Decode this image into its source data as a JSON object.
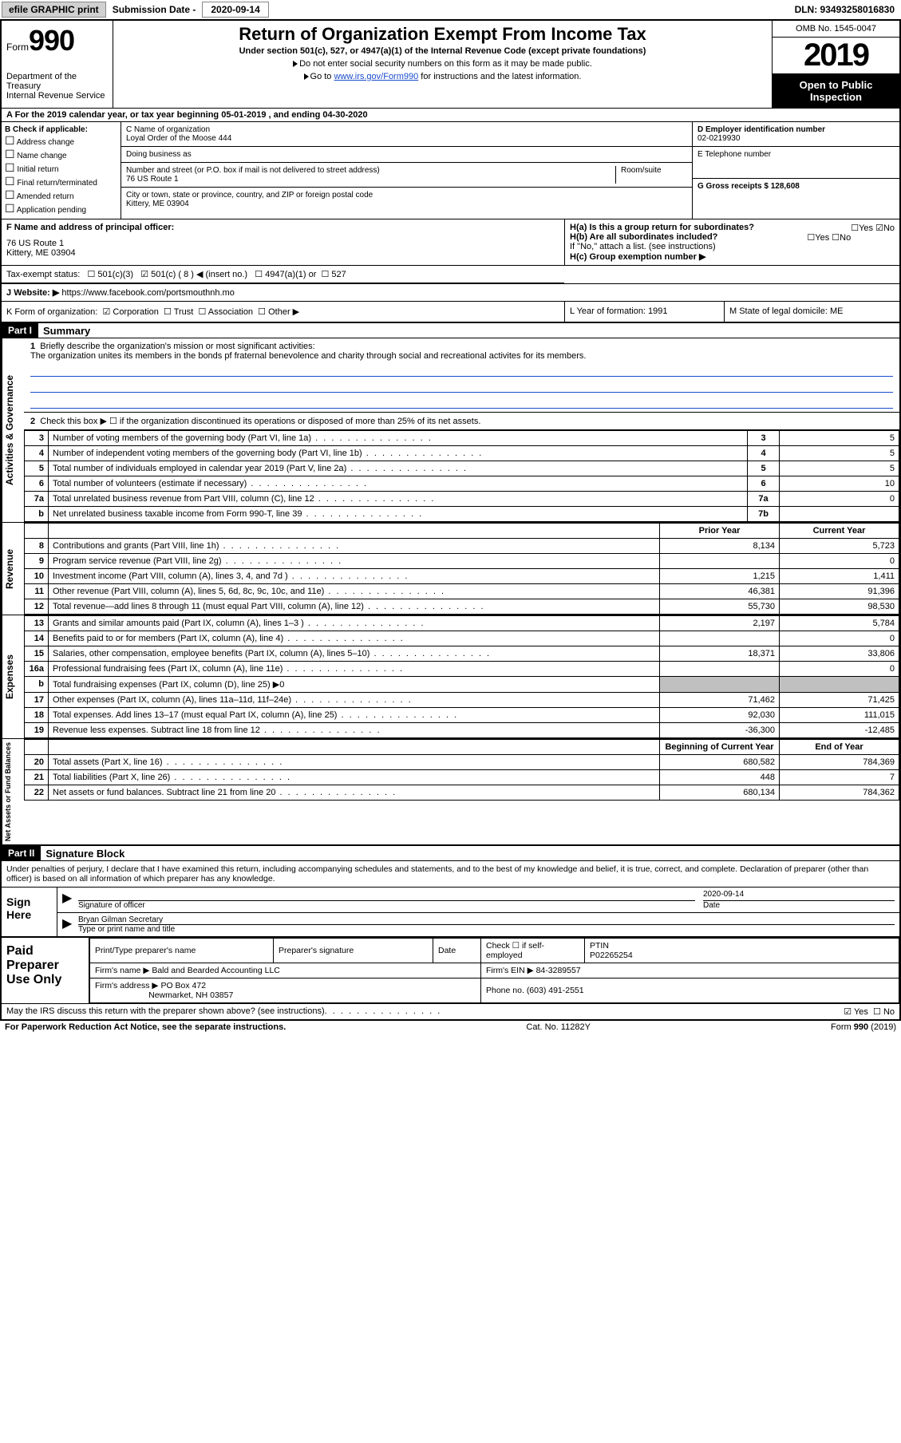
{
  "topbar": {
    "efile_label": "efile GRAPHIC print",
    "sub_label": "Submission Date - ",
    "sub_date": "2020-09-14",
    "dln": "DLN: 93493258016830"
  },
  "header": {
    "form_prefix": "Form",
    "form_no": "990",
    "dept": "Department of the Treasury",
    "irs": "Internal Revenue Service",
    "title": "Return of Organization Exempt From Income Tax",
    "sub1": "Under section 501(c), 527, or 4947(a)(1) of the Internal Revenue Code (except private foundations)",
    "sub2": "Do not enter social security numbers on this form as it may be made public.",
    "sub3_pre": "Go to ",
    "sub3_link": "www.irs.gov/Form990",
    "sub3_post": " for instructions and the latest information.",
    "omb": "OMB No. 1545-0047",
    "year": "2019",
    "openpub": "Open to Public Inspection"
  },
  "period": {
    "text": "For the 2019 calendar year, or tax year beginning 05-01-2019    , and ending 04-30-2020"
  },
  "boxB": {
    "label": "B Check if applicable:",
    "opts": [
      "Address change",
      "Name change",
      "Initial return",
      "Final return/terminated",
      "Amended return",
      "Application pending"
    ]
  },
  "boxC": {
    "name_lbl": "C Name of organization",
    "name": "Loyal Order of the Moose 444",
    "dba_lbl": "Doing business as",
    "addr_lbl": "Number and street (or P.O. box if mail is not delivered to street address)",
    "addr": "76 US Route 1",
    "room_lbl": "Room/suite",
    "city_lbl": "City or town, state or province, country, and ZIP or foreign postal code",
    "city": "Kittery, ME  03904"
  },
  "boxD": {
    "lbl": "D Employer identification number",
    "val": "02-0219930"
  },
  "boxE": {
    "lbl": "E Telephone number"
  },
  "boxG": {
    "lbl": "G Gross receipts $ 128,608"
  },
  "boxF": {
    "lbl": "F  Name and address of principal officer:",
    "l1": "76 US Route 1",
    "l2": "Kittery, ME  03904"
  },
  "boxH": {
    "ha": "H(a)  Is this a group return for subordinates?",
    "hb": "H(b)  Are all subordinates included?",
    "hb_note": "If \"No,\" attach a list. (see instructions)",
    "hc": "H(c)  Group exemption number ▶",
    "yes": "Yes",
    "no": "No"
  },
  "taxexempt": {
    "lbl": "Tax-exempt status:",
    "o1": "501(c)(3)",
    "o2": "501(c) ( 8 ) ◀ (insert no.)",
    "o3": "4947(a)(1) or",
    "o4": "527"
  },
  "boxJ": {
    "lbl": "J",
    "txt": "Website: ▶  ",
    "val": "https://www.facebook.com/portsmouthnh.mo"
  },
  "boxK": {
    "txt": "K Form of organization:",
    "o1": "Corporation",
    "o2": "Trust",
    "o3": "Association",
    "o4": "Other ▶"
  },
  "boxL": {
    "txt": "L Year of formation: 1991"
  },
  "boxM": {
    "txt": "M State of legal domicile: ME"
  },
  "part1": {
    "hdr": "Part I",
    "title": "Summary",
    "q1": "Briefly describe the organization's mission or most significant activities:",
    "mission": "The organization unites its members in the bonds pf fraternal benevolence and charity through social and recreational activites for its members.",
    "q2": "Check this box ▶ ☐  if the organization discontinued its operations or disposed of more than 25% of its net assets.",
    "side_ag": "Activities & Governance",
    "side_rev": "Revenue",
    "side_exp": "Expenses",
    "side_na": "Net Assets or Fund Balances",
    "rows_gov": [
      {
        "n": "3",
        "d": "Number of voting members of the governing body (Part VI, line 1a)",
        "c": "3",
        "v": "5"
      },
      {
        "n": "4",
        "d": "Number of independent voting members of the governing body (Part VI, line 1b)",
        "c": "4",
        "v": "5"
      },
      {
        "n": "5",
        "d": "Total number of individuals employed in calendar year 2019 (Part V, line 2a)",
        "c": "5",
        "v": "5"
      },
      {
        "n": "6",
        "d": "Total number of volunteers (estimate if necessary)",
        "c": "6",
        "v": "10"
      },
      {
        "n": "7a",
        "d": "Total unrelated business revenue from Part VIII, column (C), line 12",
        "c": "7a",
        "v": "0"
      },
      {
        "n": "b",
        "d": "Net unrelated business taxable income from Form 990-T, line 39",
        "c": "7b",
        "v": ""
      }
    ],
    "py": "Prior Year",
    "cy": "Current Year",
    "rows_rev": [
      {
        "n": "8",
        "d": "Contributions and grants (Part VIII, line 1h)",
        "py": "8,134",
        "cy": "5,723"
      },
      {
        "n": "9",
        "d": "Program service revenue (Part VIII, line 2g)",
        "py": "",
        "cy": "0"
      },
      {
        "n": "10",
        "d": "Investment income (Part VIII, column (A), lines 3, 4, and 7d )",
        "py": "1,215",
        "cy": "1,411"
      },
      {
        "n": "11",
        "d": "Other revenue (Part VIII, column (A), lines 5, 6d, 8c, 9c, 10c, and 11e)",
        "py": "46,381",
        "cy": "91,396"
      },
      {
        "n": "12",
        "d": "Total revenue—add lines 8 through 11 (must equal Part VIII, column (A), line 12)",
        "py": "55,730",
        "cy": "98,530"
      }
    ],
    "rows_exp": [
      {
        "n": "13",
        "d": "Grants and similar amounts paid (Part IX, column (A), lines 1–3 )",
        "py": "2,197",
        "cy": "5,784"
      },
      {
        "n": "14",
        "d": "Benefits paid to or for members (Part IX, column (A), line 4)",
        "py": "",
        "cy": "0"
      },
      {
        "n": "15",
        "d": "Salaries, other compensation, employee benefits (Part IX, column (A), lines 5–10)",
        "py": "18,371",
        "cy": "33,806"
      },
      {
        "n": "16a",
        "d": "Professional fundraising fees (Part IX, column (A), line 11e)",
        "py": "",
        "cy": "0"
      },
      {
        "n": "b",
        "d": "Total fundraising expenses (Part IX, column (D), line 25) ▶0",
        "py": "shade",
        "cy": "shade"
      },
      {
        "n": "17",
        "d": "Other expenses (Part IX, column (A), lines 11a–11d, 11f–24e)",
        "py": "71,462",
        "cy": "71,425"
      },
      {
        "n": "18",
        "d": "Total expenses. Add lines 13–17 (must equal Part IX, column (A), line 25)",
        "py": "92,030",
        "cy": "111,015"
      },
      {
        "n": "19",
        "d": "Revenue less expenses. Subtract line 18 from line 12",
        "py": "-36,300",
        "cy": "-12,485"
      }
    ],
    "bcy": "Beginning of Current Year",
    "eoy": "End of Year",
    "rows_na": [
      {
        "n": "20",
        "d": "Total assets (Part X, line 16)",
        "py": "680,582",
        "cy": "784,369"
      },
      {
        "n": "21",
        "d": "Total liabilities (Part X, line 26)",
        "py": "448",
        "cy": "7"
      },
      {
        "n": "22",
        "d": "Net assets or fund balances. Subtract line 21 from line 20",
        "py": "680,134",
        "cy": "784,362"
      }
    ]
  },
  "part2": {
    "hdr": "Part II",
    "title": "Signature Block",
    "decl": "Under penalties of perjury, I declare that I have examined this return, including accompanying schedules and statements, and to the best of my knowledge and belief, it is true, correct, and complete. Declaration of preparer (other than officer) is based on all information of which preparer has any knowledge.",
    "sign_here": "Sign Here",
    "sig_officer": "Signature of officer",
    "date_lbl": "Date",
    "sig_date": "2020-09-14",
    "name": "Bryan Gilman  Secretary",
    "name_lbl": "Type or print name and title",
    "paid": "Paid Preparer Use Only",
    "pname_lbl": "Print/Type preparer's name",
    "psig_lbl": "Preparer's signature",
    "pdate_lbl": "Date",
    "pcheck": "Check ☐ if self-employed",
    "ptin_lbl": "PTIN",
    "ptin": "P02265254",
    "firm_lbl": "Firm's name    ▶",
    "firm": "Bald and Bearded Accounting LLC",
    "fein_lbl": "Firm's EIN ▶",
    "fein": "84-3289557",
    "faddr_lbl": "Firm's address ▶",
    "faddr1": "PO Box 472",
    "faddr2": "Newmarket, NH  03857",
    "phone_lbl": "Phone no.",
    "phone": "(603) 491-2551",
    "discuss": "May the IRS discuss this return with the preparer shown above? (see instructions)",
    "yes": "Yes",
    "no": "No"
  },
  "footer": {
    "pra": "For Paperwork Reduction Act Notice, see the separate instructions.",
    "cat": "Cat. No. 11282Y",
    "form": "Form 990 (2019)"
  },
  "colors": {
    "link": "#1a4bcc",
    "shade": "#c0c0c0",
    "black": "#000000"
  }
}
